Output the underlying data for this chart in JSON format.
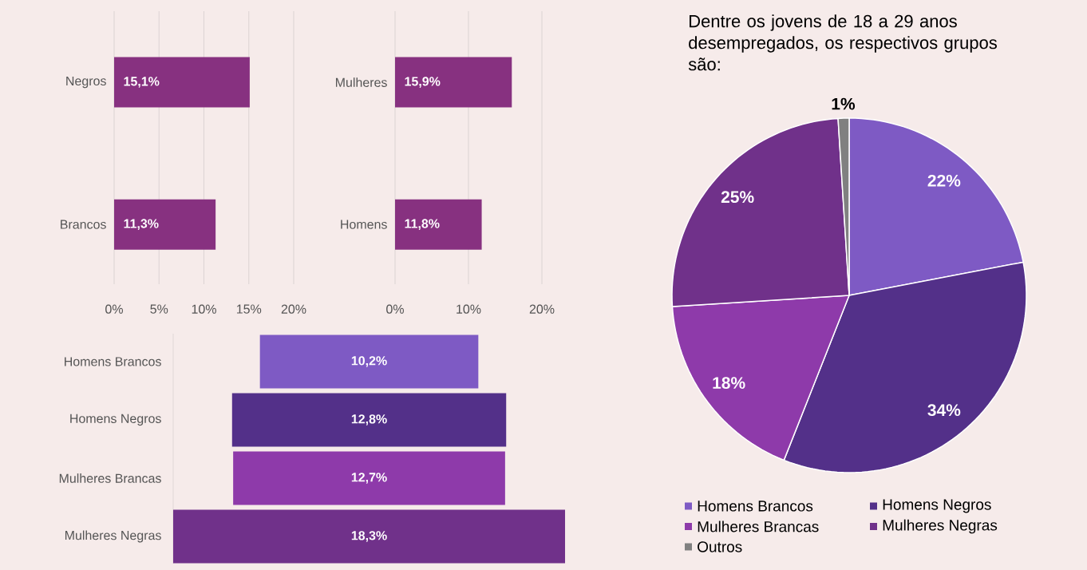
{
  "chart_data": [
    {
      "type": "bar",
      "orientation": "horizontal",
      "categories": [
        "Negros",
        "Brancos"
      ],
      "values": [
        15.1,
        11.3
      ],
      "color": "#873180",
      "value_labels": [
        "15,1%",
        "11,3%"
      ],
      "xlim": [
        0,
        20
      ],
      "xticks": [
        {
          "value": 0,
          "label": "0%"
        },
        {
          "value": 5,
          "label": "5%"
        },
        {
          "value": 10,
          "label": "10%"
        },
        {
          "value": 15,
          "label": "15%"
        },
        {
          "value": 20,
          "label": "20%"
        }
      ],
      "grid": "x"
    },
    {
      "type": "bar",
      "orientation": "horizontal",
      "categories": [
        "Mulheres",
        "Homens"
      ],
      "values": [
        15.9,
        11.8
      ],
      "color": "#873180",
      "value_labels": [
        "15,9%",
        "11,8%"
      ],
      "xlim": [
        0,
        20
      ],
      "xticks": [
        {
          "value": 0,
          "label": "0%"
        },
        {
          "value": 10,
          "label": "10%"
        },
        {
          "value": 20,
          "label": "20%"
        }
      ],
      "grid": "x"
    },
    {
      "type": "other",
      "categories": [
        "Homens Brancos",
        "Homens Negros",
        "Mulheres Brancas",
        "Mulheres Negras"
      ],
      "values": [
        10.2,
        12.8,
        12.7,
        18.3
      ],
      "colors": [
        "#7e5ac4",
        "#533089",
        "#8e3aaa",
        "#70318a"
      ],
      "value_labels": [
        "10,2%",
        "12,8%",
        "12,7%",
        "18,3%"
      ]
    },
    {
      "type": "pie",
      "title": "Dentre os jovens de 18 a 29 anos desempregados, os respectivos grupos são:",
      "categories": [
        "Homens Brancos",
        "Homens Negros",
        "Mulheres Brancas",
        "Mulheres Negras",
        "Outros"
      ],
      "values": [
        22,
        34,
        18,
        25,
        1
      ],
      "colors": [
        "#7e5ac4",
        "#533089",
        "#8e3aaa",
        "#70318a",
        "#808080"
      ],
      "value_labels": [
        "22%",
        "34%",
        "18%",
        "25%",
        "1%"
      ],
      "legend": "bottom"
    }
  ]
}
